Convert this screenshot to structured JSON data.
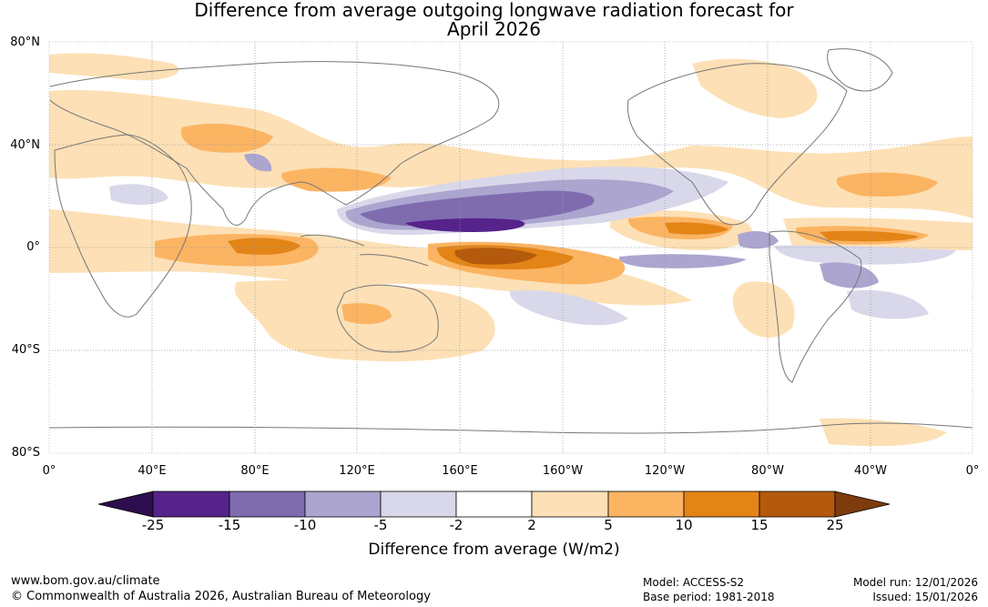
{
  "title": {
    "line1": "Difference from average outgoing longwave radiation forecast for",
    "line2": "April 2026"
  },
  "map": {
    "lat_labels": [
      "80°N",
      "40°N",
      "0°",
      "40°S",
      "80°S"
    ],
    "lon_labels": [
      "0°",
      "40°E",
      "80°E",
      "120°E",
      "160°E",
      "160°W",
      "120°W",
      "80°W",
      "40°W",
      "0°"
    ],
    "colors": {
      "neg25": "#2d0d4e",
      "neg15_25": "#55238a",
      "neg10_15": "#7f6caf",
      "neg5_10": "#aba5cf",
      "neg2_5": "#d8d8ea",
      "neutral": "#ffffff",
      "pos2_5": "#fde0b5",
      "pos5_10": "#fbb462",
      "pos10_15": "#e38417",
      "pos15_25": "#b45a0c",
      "pos25": "#7e3b0d"
    }
  },
  "colorbar": {
    "ticks": [
      "-25",
      "-15",
      "-10",
      "-5",
      "-2",
      "2",
      "5",
      "10",
      "15",
      "25"
    ],
    "title": "Difference from average (W/m2)"
  },
  "footer": {
    "website": "www.bom.gov.au/climate",
    "copyright": "© Commonwealth of Australia 2026, Australian Bureau of Meteorology",
    "model": "Model: ACCESS-S2",
    "base_period": "Base period: 1981-2018",
    "model_run": "Model run: 12/01/2026",
    "issued": "Issued: 15/01/2026"
  }
}
